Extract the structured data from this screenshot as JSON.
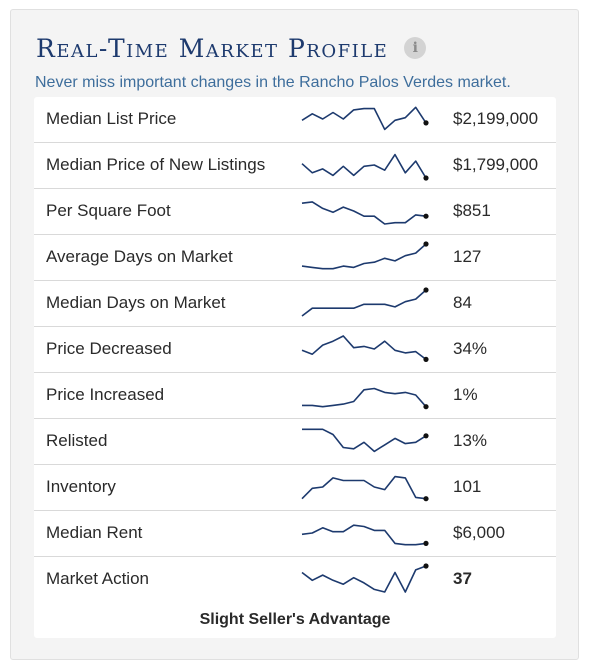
{
  "widget": {
    "title": "Real-Time Market Profile",
    "info_icon": "i",
    "subtitle": "Never miss important changes in the Rancho Palos Verdes market.",
    "footer": "Slight Seller's Advantage",
    "line_color": "#1d3a6e",
    "title_color": "#1d3a6e",
    "subtitle_color": "#3e6e9c"
  },
  "metrics": [
    {
      "label": "Median List Price",
      "value": "$2,199,000",
      "trend": [
        0.45,
        0.7,
        0.5,
        0.75,
        0.5,
        0.85,
        0.9,
        0.9,
        0.1,
        0.45,
        0.55,
        0.95,
        0.35
      ]
    },
    {
      "label": "Median Price of New Listings",
      "value": "$1,799,000",
      "trend": [
        0.55,
        0.2,
        0.35,
        0.1,
        0.45,
        0.1,
        0.45,
        0.5,
        0.3,
        0.9,
        0.2,
        0.65,
        0.0
      ]
    },
    {
      "label": "Per Square Foot",
      "value": "$851",
      "trend": [
        0.8,
        0.85,
        0.6,
        0.45,
        0.65,
        0.5,
        0.3,
        0.3,
        0.0,
        0.05,
        0.05,
        0.35,
        0.3
      ]
    },
    {
      "label": "Average Days on Market",
      "value": "127",
      "trend": [
        0.15,
        0.1,
        0.05,
        0.05,
        0.15,
        0.1,
        0.25,
        0.3,
        0.45,
        0.35,
        0.55,
        0.65,
        1.0
      ]
    },
    {
      "label": "Median Days on Market",
      "value": "84",
      "trend": [
        0.0,
        0.3,
        0.3,
        0.3,
        0.3,
        0.3,
        0.45,
        0.45,
        0.45,
        0.35,
        0.55,
        0.65,
        1.0
      ]
    },
    {
      "label": "Price Decreased",
      "value": "34%",
      "trend": [
        0.45,
        0.3,
        0.65,
        0.8,
        1.0,
        0.55,
        0.6,
        0.5,
        0.8,
        0.45,
        0.35,
        0.4,
        0.1
      ]
    },
    {
      "label": "Price Increased",
      "value": "1%",
      "trend": [
        0.1,
        0.1,
        0.05,
        0.1,
        0.15,
        0.25,
        0.7,
        0.75,
        0.6,
        0.55,
        0.6,
        0.5,
        0.05
      ]
    },
    {
      "label": "Relisted",
      "value": "13%",
      "trend": [
        0.95,
        0.95,
        0.95,
        0.75,
        0.25,
        0.2,
        0.45,
        0.1,
        0.35,
        0.6,
        0.4,
        0.45,
        0.7
      ]
    },
    {
      "label": "Inventory",
      "value": "101",
      "trend": [
        0.05,
        0.45,
        0.5,
        0.85,
        0.75,
        0.75,
        0.75,
        0.5,
        0.4,
        0.9,
        0.85,
        0.1,
        0.05
      ]
    },
    {
      "label": "Median Rent",
      "value": "$6,000",
      "trend": [
        0.45,
        0.5,
        0.7,
        0.55,
        0.55,
        0.8,
        0.75,
        0.6,
        0.6,
        0.1,
        0.05,
        0.05,
        0.1
      ]
    },
    {
      "label": "Market Action",
      "value": "37",
      "value_bold": true,
      "trend": [
        0.75,
        0.45,
        0.65,
        0.45,
        0.3,
        0.55,
        0.35,
        0.1,
        0.0,
        0.75,
        0.0,
        0.85,
        1.0
      ]
    }
  ]
}
